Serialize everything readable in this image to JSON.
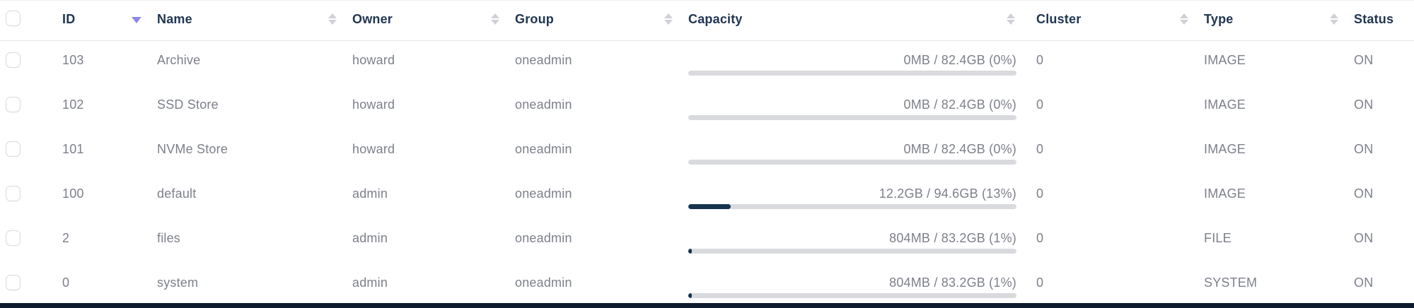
{
  "table": {
    "columns": [
      {
        "label": "ID",
        "sorted": "desc"
      },
      {
        "label": "Name",
        "sorted": "none"
      },
      {
        "label": "Owner",
        "sorted": "none"
      },
      {
        "label": "Group",
        "sorted": "none"
      },
      {
        "label": "Capacity",
        "sorted": "none"
      },
      {
        "label": "Cluster",
        "sorted": "none"
      },
      {
        "label": "Type",
        "sorted": "none"
      },
      {
        "label": "Status",
        "sorted": "none"
      }
    ],
    "rows": [
      {
        "id": "103",
        "name": "Archive",
        "owner": "howard",
        "group": "oneadmin",
        "capacity_label": "0MB / 82.4GB (0%)",
        "capacity_percent": 0,
        "cluster": "0",
        "type": "IMAGE",
        "status": "ON"
      },
      {
        "id": "102",
        "name": "SSD Store",
        "owner": "howard",
        "group": "oneadmin",
        "capacity_label": "0MB / 82.4GB (0%)",
        "capacity_percent": 0,
        "cluster": "0",
        "type": "IMAGE",
        "status": "ON"
      },
      {
        "id": "101",
        "name": "NVMe Store",
        "owner": "howard",
        "group": "oneadmin",
        "capacity_label": "0MB / 82.4GB (0%)",
        "capacity_percent": 0,
        "cluster": "0",
        "type": "IMAGE",
        "status": "ON"
      },
      {
        "id": "100",
        "name": "default",
        "owner": "admin",
        "group": "oneadmin",
        "capacity_label": "12.2GB / 94.6GB (13%)",
        "capacity_percent": 13,
        "cluster": "0",
        "type": "IMAGE",
        "status": "ON"
      },
      {
        "id": "2",
        "name": "files",
        "owner": "admin",
        "group": "oneadmin",
        "capacity_label": "804MB / 83.2GB (1%)",
        "capacity_percent": 1,
        "cluster": "0",
        "type": "FILE",
        "status": "ON"
      },
      {
        "id": "0",
        "name": "system",
        "owner": "admin",
        "group": "oneadmin",
        "capacity_label": "804MB / 83.2GB (1%)",
        "capacity_percent": 1,
        "cluster": "0",
        "type": "SYSTEM",
        "status": "ON"
      }
    ]
  },
  "colors": {
    "header_text": "#203652",
    "body_text": "#7d808a",
    "accent_sort": "#8a87ee",
    "sort_idle": "#cfd1d6",
    "bar_track": "#d9dade",
    "bar_fill": "#16334e",
    "divider": "#e7e7ea",
    "checkbox_border": "#d9d9e0",
    "bottom_bar": "#0e1a2e"
  }
}
